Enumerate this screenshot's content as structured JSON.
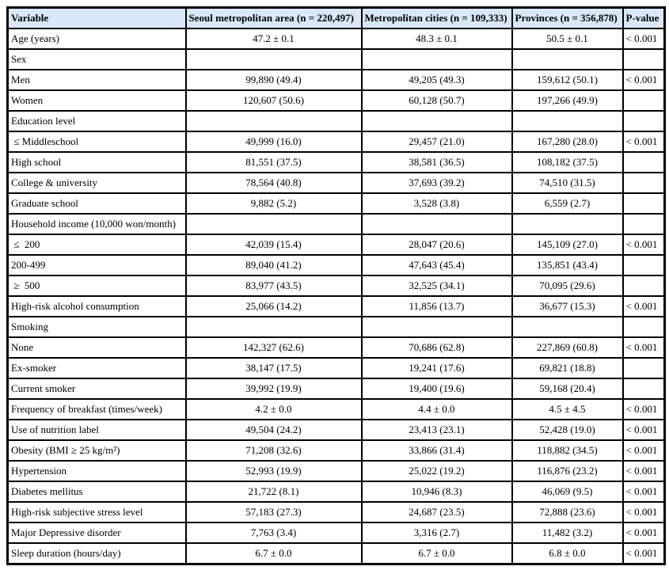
{
  "table": {
    "columns": [
      "Variable",
      "Seoul metropolitan area (n = 220,497)",
      "Metropolitan cities (n = 109,333)",
      "Provinces (n = 356,878)",
      "P-value"
    ],
    "rows": [
      [
        "Age (years)",
        "47.2 ± 0.1",
        "48.3 ± 0.1",
        "50.5 ± 0.1",
        "< 0.001"
      ],
      [
        "Sex",
        "",
        "",
        "",
        ""
      ],
      [
        "Men",
        "99,890 (49.4)",
        "49,205 (49.3)",
        "159,612 (50.1)",
        "< 0.001"
      ],
      [
        "Women",
        "120,607 (50.6)",
        "60,128 (50.7)",
        "197,266 (49.9)",
        ""
      ],
      [
        "Education level",
        "",
        "",
        "",
        ""
      ],
      [
        " ≤ Middleschool",
        "49,999 (16.0)",
        "29,457 (21.0)",
        "167,280 (28.0)",
        "< 0.001"
      ],
      [
        "High school",
        "81,551 (37.5)",
        "38,581 (36.5)",
        "108,182 (37.5)",
        ""
      ],
      [
        "College & university",
        "78,564 (40.8)",
        "37,693 (39.2)",
        "74,510 (31.5)",
        ""
      ],
      [
        "Graduate school",
        "9,882 (5.2)",
        "3,528 (3.8)",
        "6,559 (2.7)",
        ""
      ],
      [
        "Household income (10,000 won/month)",
        "",
        "",
        "",
        ""
      ],
      [
        " ≤  200",
        "42,039 (15.4)",
        "28,047 (20.6)",
        "145,109 (27.0)",
        "< 0.001"
      ],
      [
        "200-499",
        "89,040 (41.2)",
        "47,643 (45.4)",
        "135,851 (43.4)",
        ""
      ],
      [
        " ≥  500",
        "83,977 (43.5)",
        "32,525 (34.1)",
        "70,095 (29.6)",
        ""
      ],
      [
        "High-risk alcohol consumption",
        "25,066 (14.2)",
        "11,856 (13.7)",
        "36,677 (15.3)",
        "< 0.001"
      ],
      [
        "Smoking",
        "",
        "",
        "",
        ""
      ],
      [
        "None",
        "142,327 (62.6)",
        "70,686 (62.8)",
        "227,869 (60.8)",
        "< 0.001"
      ],
      [
        "Ex-smoker",
        "38,147 (17.5)",
        "19,241 (17.6)",
        "69,821 (18.8)",
        ""
      ],
      [
        "Current smoker",
        "39,992 (19.9)",
        "19,400 (19.6)",
        "59,168 (20.4)",
        ""
      ],
      [
        "Frequency of breakfast (times/week)",
        "4.2 ± 0.0",
        "4.4 ± 0.0",
        "4.5 ± 4.5",
        "< 0.001"
      ],
      [
        "Use of nutrition label",
        "49,504 (24.2)",
        "23,413 (23.1)",
        "52,428 (19.0)",
        "< 0.001"
      ],
      [
        "Obesity (BMI ≥ 25 kg/m²)",
        "71,208 (32.6)",
        "33,866 (31.4)",
        "118,882 (34.5)",
        "< 0.001"
      ],
      [
        "Hypertension",
        "52,993 (19.9)",
        "25,022 (19.2)",
        "116,876 (23.2)",
        "< 0.001"
      ],
      [
        "Diabetes mellitus",
        "21,722 (8.1)",
        "10,946 (8.3)",
        "46,069 (9.5)",
        "< 0.001"
      ],
      [
        "High-risk subjective stress level",
        "57,183 (27.3)",
        "24,687 (23.5)",
        "72,888 (23.6)",
        "< 0.001"
      ],
      [
        "Major Depressive disorder",
        "7,763 (3.4)",
        "3,316 (2.7)",
        "11,482 (3.2)",
        "< 0.001"
      ],
      [
        "Sleep duration (hours/day)",
        "6.7 ± 0.0",
        "6.7 ± 0.0",
        "6.8 ± 0.0",
        "< 0.001"
      ]
    ],
    "colors": {
      "header_bg": "#d9e8f8",
      "border": "#000000"
    }
  }
}
